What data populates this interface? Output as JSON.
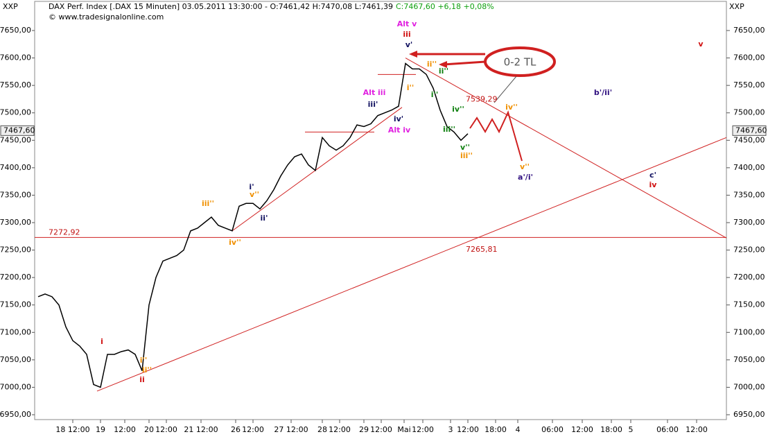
{
  "chart_data": {
    "type": "line",
    "symbol_left": "XXP",
    "symbol_right": "XXP",
    "title": "DAX Perf. Index [.DAX  15 Minuten] 03.05.2011 13:30:00 - O:7461,42 H:7470,08 L:7461,39",
    "title_change": "C:7467,60 +6,18 +0,08%",
    "copyright": "© www.tradesignalonline.com",
    "last_price": {
      "value": 7467.6,
      "label": "7467,60"
    },
    "series": [
      {
        "name": "DAX",
        "color": "#000000",
        "values": [
          7165,
          7170,
          7165,
          7150,
          7110,
          7085,
          7075,
          7060,
          7005,
          7000,
          7060,
          7060,
          7065,
          7068,
          7060,
          7030,
          7150,
          7200,
          7230,
          7235,
          7240,
          7250,
          7285,
          7290,
          7300,
          7310,
          7295,
          7290,
          7285,
          7330,
          7335,
          7335,
          7325,
          7340,
          7360,
          7385,
          7405,
          7420,
          7425,
          7405,
          7395,
          7455,
          7440,
          7432,
          7440,
          7455,
          7478,
          7475,
          7480,
          7495,
          7500,
          7505,
          7512,
          7590,
          7580,
          7580,
          7570,
          7545,
          7505,
          7475,
          7465,
          7450,
          7462
        ]
      }
    ],
    "xlim": [
      -0.5,
      99.3
    ],
    "xticks": [
      {
        "value": 5,
        "label": "18 12:00"
      },
      {
        "value": 9,
        "label": "19"
      },
      {
        "value": 12.5,
        "label": "12:00"
      },
      {
        "value": 16,
        "label": "20"
      },
      {
        "value": 18.5,
        "label": "12:00"
      },
      {
        "value": 23.5,
        "label": "21 12:00"
      },
      {
        "value": 28.5,
        "label": "26"
      },
      {
        "value": 31,
        "label": "12:00"
      },
      {
        "value": 36.5,
        "label": "27 12:00"
      },
      {
        "value": 41,
        "label": "28"
      },
      {
        "value": 43.5,
        "label": "12:00"
      },
      {
        "value": 47,
        "label": "29"
      },
      {
        "value": 49.5,
        "label": "12:00"
      },
      {
        "value": 52.8,
        "label": "Mai"
      },
      {
        "value": 55.5,
        "label": "12:00"
      },
      {
        "value": 59.5,
        "label": "3"
      },
      {
        "value": 62,
        "label": "12:00"
      },
      {
        "value": 66,
        "label": "18:00"
      },
      {
        "value": 69.2,
        "label": "4"
      },
      {
        "value": 74.2,
        "label": "06:00"
      },
      {
        "value": 78.5,
        "label": "12:00"
      },
      {
        "value": 82.7,
        "label": "18:00"
      },
      {
        "value": 85.5,
        "label": "5"
      },
      {
        "value": 90.8,
        "label": "06:00"
      },
      {
        "value": 95,
        "label": "12:00"
      }
    ],
    "ylim": [
      6950,
      7650
    ],
    "yticks": [
      {
        "value": 6950,
        "label": "6950,00"
      },
      {
        "value": 7000,
        "label": "7000,00"
      },
      {
        "value": 7050,
        "label": "7050,00"
      },
      {
        "value": 7100,
        "label": "7100,00"
      },
      {
        "value": 7150,
        "label": "7150,00"
      },
      {
        "value": 7200,
        "label": "7200,00"
      },
      {
        "value": 7250,
        "label": "7250,00"
      },
      {
        "value": 7300,
        "label": "7300,00"
      },
      {
        "value": 7350,
        "label": "7350,00"
      },
      {
        "value": 7400,
        "label": "7400,00"
      },
      {
        "value": 7450,
        "label": "7450,00"
      },
      {
        "value": 7500,
        "label": "7500,00"
      },
      {
        "value": 7550,
        "label": "7550,00"
      },
      {
        "value": 7600,
        "label": "7600,00"
      },
      {
        "value": 7650,
        "label": "7650,00"
      }
    ],
    "hline": {
      "value": 7272.92,
      "label": "7272,92"
    },
    "price_labels": [
      {
        "value": 7265.81,
        "label": "7265,81"
      },
      {
        "value": 7539.29,
        "label": "7539,29"
      }
    ],
    "trendlines": [
      [
        [
          8.5,
          6993
        ],
        [
          99.3,
          7455
        ]
      ],
      [
        [
          28,
          7285
        ],
        [
          52.5,
          7510
        ]
      ],
      [
        [
          53,
          7600
        ],
        [
          99.3,
          7272
        ]
      ],
      [
        [
          38.5,
          7465
        ],
        [
          48.5,
          7465
        ]
      ],
      [
        [
          49,
          7570
        ],
        [
          54.5,
          7570
        ]
      ]
    ],
    "callout": "0-2 TL",
    "annotations": [
      {
        "text": "Alt v",
        "color": "#e020e0"
      },
      {
        "text": "iii",
        "color": "#d01010"
      },
      {
        "text": "v'",
        "color": "#101060"
      },
      {
        "text": "ii''",
        "color": "#f09000"
      },
      {
        "text": "ii''",
        "color": "#108010"
      },
      {
        "text": "i''",
        "color": "#f09000"
      },
      {
        "text": "i''",
        "color": "#108010"
      },
      {
        "text": "Alt iii",
        "color": "#e020e0"
      },
      {
        "text": "iii'",
        "color": "#101060"
      },
      {
        "text": "iv'",
        "color": "#101060"
      },
      {
        "text": "Alt iv",
        "color": "#e020e0"
      },
      {
        "text": "iv''",
        "color": "#108010"
      },
      {
        "text": "iii''",
        "color": "#108010"
      },
      {
        "text": "v''",
        "color": "#108010"
      },
      {
        "text": "iii''",
        "color": "#f09000"
      },
      {
        "text": "iv''",
        "color": "#f09000"
      },
      {
        "text": "v''",
        "color": "#f09000"
      },
      {
        "text": "a'/i'",
        "color": "#301080"
      },
      {
        "text": "b'/ii'",
        "color": "#301080"
      },
      {
        "text": "c'",
        "color": "#101060"
      },
      {
        "text": "iv",
        "color": "#d01010"
      },
      {
        "text": "v",
        "color": "#d01010"
      },
      {
        "text": "i'",
        "color": "#101060"
      },
      {
        "text": "v''",
        "color": "#f09000"
      },
      {
        "text": "iii''",
        "color": "#f09000"
      },
      {
        "text": "ii'",
        "color": "#101060"
      },
      {
        "text": "iv''",
        "color": "#f09000"
      },
      {
        "text": "i",
        "color": "#d01010"
      },
      {
        "text": "ii",
        "color": "#d01010"
      },
      {
        "text": "i''",
        "color": "#f09000"
      },
      {
        "text": "ii''",
        "color": "#f09000"
      }
    ]
  }
}
